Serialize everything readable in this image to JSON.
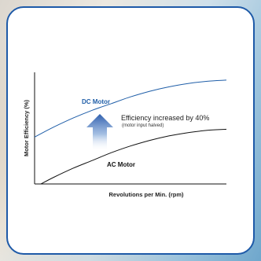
{
  "chart_data": {
    "type": "line",
    "title": "",
    "xlabel": "Revolutions per Min. (rpm)",
    "ylabel": "Motor Efficiency (%)",
    "x_ticks_shown": false,
    "y_ticks_shown": false,
    "grid": false,
    "legend": "none",
    "xlim": [
      0,
      100
    ],
    "ylim": [
      0,
      100
    ],
    "x": [
      0,
      10,
      20,
      30,
      40,
      50,
      60,
      70,
      80,
      90,
      100
    ],
    "series": [
      {
        "name": "DC Motor",
        "color": "#1f5ea8",
        "values": [
          42,
          51,
          59,
          66,
          72,
          78,
          83,
          87,
          90,
          92,
          93
        ]
      },
      {
        "name": "AC Motor",
        "color": "#111111",
        "values": [
          -3,
          6,
          14,
          21,
          28,
          34,
          39,
          43,
          46,
          48,
          49
        ]
      }
    ],
    "annotations": [
      {
        "text": "Efficiency increased by 40%",
        "subtext": "(motor input halved)",
        "arrow": "up",
        "arrow_color": "#3b67b0"
      }
    ]
  },
  "colors": {
    "card_border": "#1e5aa8",
    "axis": "#111111"
  }
}
